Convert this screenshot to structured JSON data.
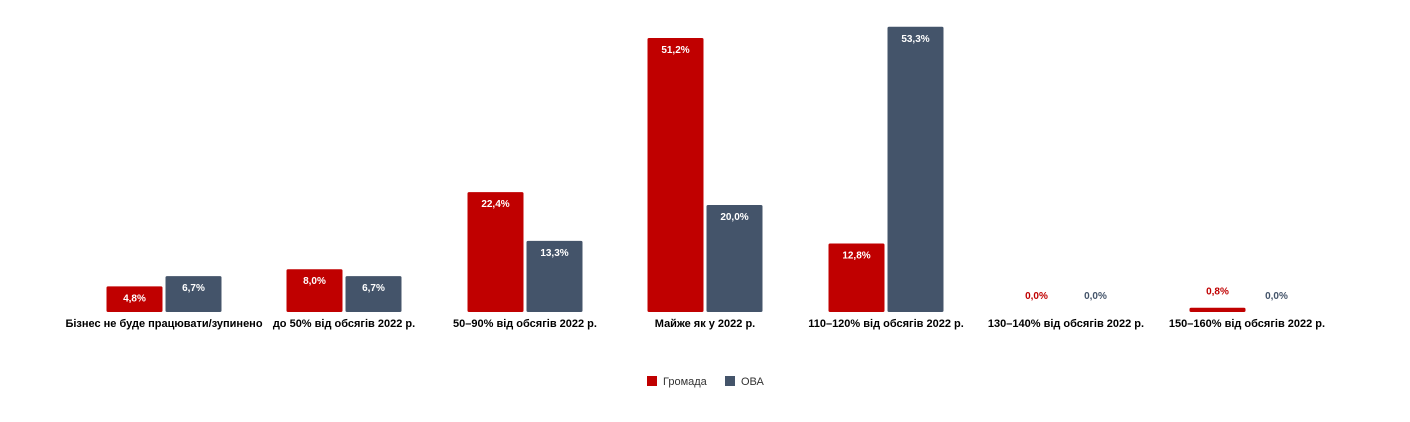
{
  "chart_data": {
    "type": "bar",
    "title": "",
    "xlabel": "",
    "ylabel": "",
    "ylim": [
      0,
      55
    ],
    "grid": false,
    "legend_position": "bottom-center",
    "categories": [
      "Бізнес не буде працювати/зупинено",
      "до 50% від обсягів 2022 р.",
      "50–90% від обсягів 2022 р.",
      "Майже як у 2022 р.",
      "110–120% від обсягів 2022 р.",
      "130–140% від обсягів 2022 р.",
      "150–160% від обсягів 2022 р."
    ],
    "series": [
      {
        "name": "Громада",
        "color": "#c00000",
        "values": [
          4.8,
          8.0,
          22.4,
          51.2,
          12.8,
          0.0,
          0.8
        ],
        "labels": [
          "4,8%",
          "8,0%",
          "22,4%",
          "51,2%",
          "12,8%",
          "0,0%",
          "0,8%"
        ]
      },
      {
        "name": "ОВА",
        "color": "#44546a",
        "values": [
          6.7,
          6.7,
          13.3,
          20.0,
          53.3,
          0.0,
          0.0
        ],
        "labels": [
          "6,7%",
          "6,7%",
          "13,3%",
          "20,0%",
          "53,3%",
          "0,0%",
          "0,0%"
        ]
      }
    ]
  }
}
